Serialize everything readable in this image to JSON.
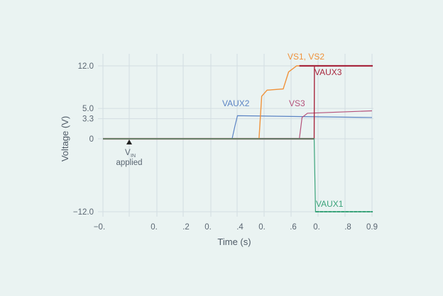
{
  "chart_data": {
    "type": "line",
    "title": "",
    "xlabel": "Time (s)",
    "ylabel": "Voltage (V)",
    "x_tick_labels": [
      "−0.",
      "0.",
      ".2",
      "0.",
      ".4",
      "0.",
      ".6",
      "0.",
      ".8",
      "0.9"
    ],
    "y_tick_labels": [
      "12.0",
      "5.0",
      "3.3",
      "0",
      "−12.0"
    ],
    "y_ticks": [
      12.0,
      5.0,
      3.3,
      0,
      -12.0
    ],
    "ylim": [
      -12.0,
      12.5
    ],
    "xlim": [
      -0.1,
      0.9
    ],
    "grid": true,
    "annotation": {
      "text_main": "V",
      "text_sub": "IN",
      "text_line2": "applied",
      "x": 0.0
    },
    "series": [
      {
        "name": "VAUX2",
        "color": "#5b84c4",
        "x": [
          -0.1,
          0.38,
          0.39,
          0.4,
          0.9
        ],
        "values": [
          0,
          0,
          2.0,
          3.8,
          3.5
        ]
      },
      {
        "name": "VS1, VS2",
        "color": "#f0923a",
        "x": [
          -0.1,
          0.48,
          0.49,
          0.51,
          0.57,
          0.59,
          0.62,
          0.9
        ],
        "values": [
          0,
          0,
          7.0,
          8.0,
          8.2,
          11.0,
          12.0,
          12.0
        ]
      },
      {
        "name": "VS3",
        "color": "#b4517a",
        "x": [
          -0.1,
          0.63,
          0.64,
          0.66,
          0.9
        ],
        "values": [
          0,
          0,
          3.5,
          4.2,
          4.6
        ]
      },
      {
        "name": "VAUX3",
        "color": "#a8283f",
        "x": [
          -0.1,
          0.685,
          0.686,
          0.9
        ],
        "values": [
          0,
          0,
          12.0,
          12.0
        ]
      },
      {
        "name": "VAUX1",
        "color": "#3aa37a",
        "x": [
          -0.1,
          0.685,
          0.69,
          0.9
        ],
        "values": [
          0,
          0,
          -12.0,
          -12.0
        ]
      }
    ]
  }
}
